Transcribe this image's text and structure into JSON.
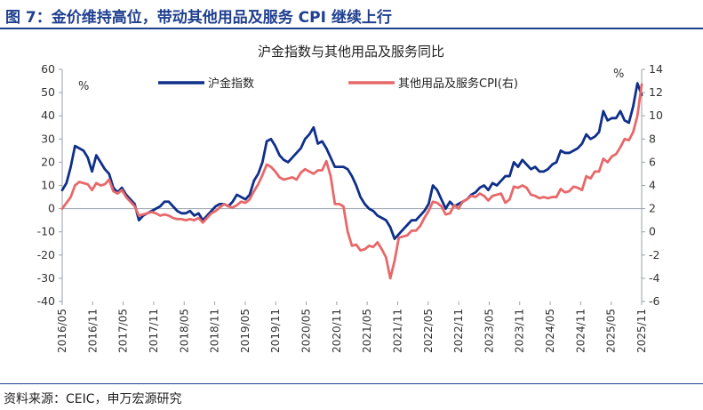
{
  "figure": {
    "title": "图 7：金价维持高位，带动其他用品及服务 CPI 继续上行",
    "source": "资料来源：CEIC，申万宏源研究"
  },
  "colors": {
    "header": "#1f3f8f",
    "gold_series": "#0f2f8a",
    "cpi_series": "#e8686a",
    "axis": "#9aa0aa"
  },
  "chart_data": {
    "type": "line",
    "title": "沪金指数与其他用品及服务同比",
    "left_axis": {
      "unit": "%",
      "ylim": [
        -40,
        60
      ],
      "ticks": [
        -40,
        -30,
        -20,
        -10,
        0,
        10,
        20,
        30,
        40,
        50,
        60
      ]
    },
    "right_axis": {
      "unit": "%",
      "ylim": [
        -6,
        14
      ],
      "ticks": [
        -6,
        -4,
        -2,
        0,
        2,
        4,
        6,
        8,
        10,
        12,
        14
      ]
    },
    "x_tick_labels": [
      "2016/05",
      "2016/11",
      "2017/05",
      "2017/11",
      "2018/05",
      "2018/11",
      "2019/05",
      "2019/11",
      "2020/05",
      "2020/11",
      "2021/05",
      "2021/11",
      "2022/05",
      "2022/11",
      "2023/05",
      "2023/11",
      "2024/05",
      "2024/11",
      "2025/05",
      "2025/11"
    ],
    "x_start": "2016/05",
    "x_end": "2025/11",
    "series": [
      {
        "name": "沪金指数",
        "axis": "left",
        "values": [
          8,
          11,
          18,
          27,
          26,
          25,
          22,
          16,
          23,
          20,
          17,
          15,
          9,
          7,
          9,
          6,
          4,
          2,
          -5,
          -3,
          -2,
          -1,
          0,
          1,
          3,
          3,
          1,
          -1,
          -2,
          -2,
          -1,
          -3,
          -2,
          -5,
          -3,
          -1,
          1,
          2,
          2,
          1,
          3,
          6,
          5,
          4,
          6,
          12,
          15,
          20,
          29,
          30,
          27,
          23,
          21,
          20,
          22,
          24,
          26,
          30,
          32,
          35,
          28,
          29,
          26,
          22,
          18,
          18,
          18,
          17,
          14,
          10,
          5,
          2,
          0,
          -1,
          -3,
          -4,
          -5,
          -8,
          -13,
          -11,
          -9,
          -7,
          -5,
          -5,
          -3,
          -1,
          2,
          10,
          8,
          4,
          0,
          3,
          1,
          2,
          3,
          4,
          6,
          7,
          9,
          10,
          8,
          11,
          10,
          12,
          14,
          14,
          20,
          18,
          21,
          19,
          17,
          18,
          16,
          16,
          17,
          19,
          20,
          25,
          24,
          24,
          25,
          26,
          28,
          32,
          30,
          31,
          33,
          42,
          38,
          39,
          39,
          42,
          38,
          37,
          44,
          54,
          49
        ]
      },
      {
        "name": "其他用品及服务CPI(右)",
        "axis": "right",
        "values": [
          2.0,
          2.5,
          3.0,
          4.0,
          4.3,
          4.2,
          4.1,
          3.6,
          4.2,
          4.0,
          4.1,
          4.5,
          3.5,
          3.3,
          3.6,
          3.0,
          2.6,
          2.2,
          1.4,
          1.5,
          1.6,
          1.7,
          1.6,
          1.4,
          1.5,
          1.4,
          1.2,
          1.1,
          1.1,
          1.0,
          1.1,
          1.0,
          1.2,
          0.8,
          1.2,
          1.6,
          1.8,
          2.1,
          2.4,
          2.2,
          2.1,
          2.3,
          2.6,
          2.5,
          2.8,
          3.5,
          4.1,
          4.9,
          5.8,
          5.6,
          5.2,
          4.7,
          4.5,
          4.6,
          4.7,
          4.5,
          5.1,
          5.4,
          5.2,
          5.0,
          5.3,
          5.3,
          6.1,
          4.8,
          2.4,
          2.4,
          2.2,
          0.0,
          -1.2,
          -1.1,
          -1.6,
          -1.5,
          -1.2,
          -1.3,
          -0.9,
          -1.5,
          -2.2,
          -4.0,
          -2.5,
          -0.5,
          -0.4,
          -0.3,
          0.1,
          0.1,
          0.5,
          1.2,
          1.8,
          2.6,
          2.5,
          2.2,
          1.5,
          1.6,
          2.3,
          2.0,
          2.6,
          2.8,
          3.1,
          3.0,
          3.3,
          3.1,
          2.7,
          3.1,
          3.2,
          3.3,
          2.5,
          2.8,
          3.9,
          3.8,
          4.0,
          3.8,
          3.2,
          3.1,
          2.9,
          3.0,
          2.9,
          3.0,
          3.0,
          3.7,
          3.4,
          3.5,
          3.9,
          3.8,
          3.6,
          4.8,
          4.6,
          5.2,
          5.2,
          6.3,
          6.0,
          6.5,
          6.7,
          7.3,
          8.0,
          7.9,
          8.6,
          10.0,
          12.7
        ]
      }
    ],
    "legend_position": "top"
  }
}
